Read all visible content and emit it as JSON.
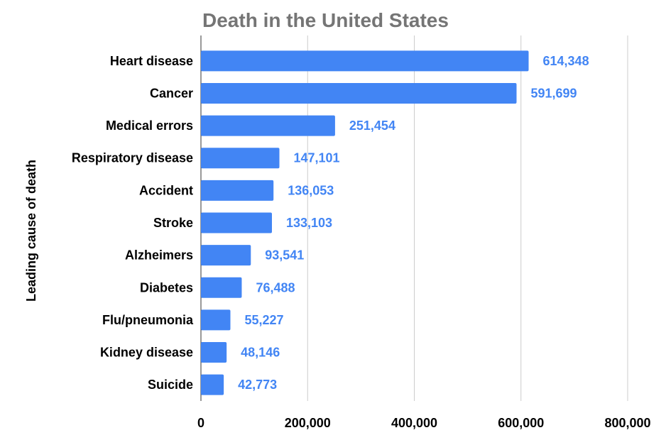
{
  "chart_data": {
    "type": "bar",
    "orientation": "horizontal",
    "title": "Death in the United States",
    "ylabel": "Leading cause of death",
    "xlabel": "",
    "categories": [
      "Heart disease",
      "Cancer",
      "Medical errors",
      "Respiratory disease",
      "Accident",
      "Stroke",
      "Alzheimers",
      "Diabetes",
      "Flu/pneumonia",
      "Kidney disease",
      "Suicide"
    ],
    "values": [
      614348,
      591699,
      251454,
      147101,
      136053,
      133103,
      93541,
      76488,
      55227,
      48146,
      42773
    ],
    "value_labels": [
      "614,348",
      "591,699",
      "251,454",
      "147,101",
      "136,053",
      "133,103",
      "93,541",
      "76,488",
      "55,227",
      "48,146",
      "42,773"
    ],
    "xlim": [
      0,
      800000
    ],
    "x_ticks": [
      0,
      200000,
      400000,
      600000,
      800000
    ],
    "x_tick_labels": [
      "0",
      "200,000",
      "400,000",
      "600,000",
      "800,000"
    ],
    "grid": true,
    "legend": "none",
    "bar_color": "#4285f4",
    "value_label_color": "#4285f4",
    "grid_color": "#cccccc",
    "title_color": "#757575"
  }
}
